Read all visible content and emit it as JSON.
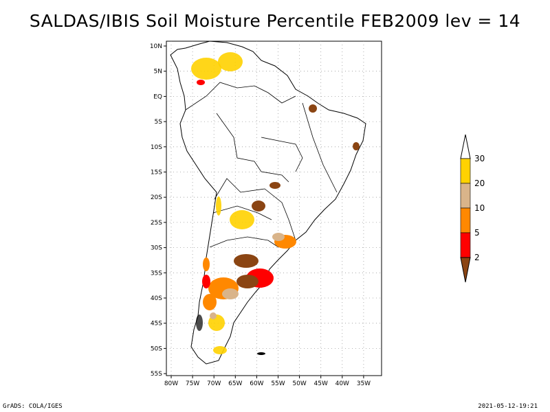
{
  "title": "SALDAS/IBIS Soil Moisture Percentile FEB2009 lev = 14",
  "map": {
    "lat_labels": [
      "10N",
      "5N",
      "EQ",
      "5S",
      "10S",
      "15S",
      "20S",
      "25S",
      "30S",
      "35S",
      "40S",
      "45S",
      "50S",
      "55S"
    ],
    "lon_labels": [
      "80W",
      "75W",
      "70W",
      "65W",
      "60W",
      "55W",
      "50W",
      "45W",
      "40W",
      "35W"
    ]
  },
  "legend": {
    "ticks": [
      "30",
      "20",
      "10",
      "5",
      "2"
    ],
    "colors": [
      "#ffd200",
      "#d9b48a",
      "#ff8800",
      "#ff0000",
      "#8b4513",
      "#ffffff"
    ]
  },
  "footer": {
    "left": "GrADS: COLA/IGES",
    "right": "2021-05-12-19:21"
  }
}
